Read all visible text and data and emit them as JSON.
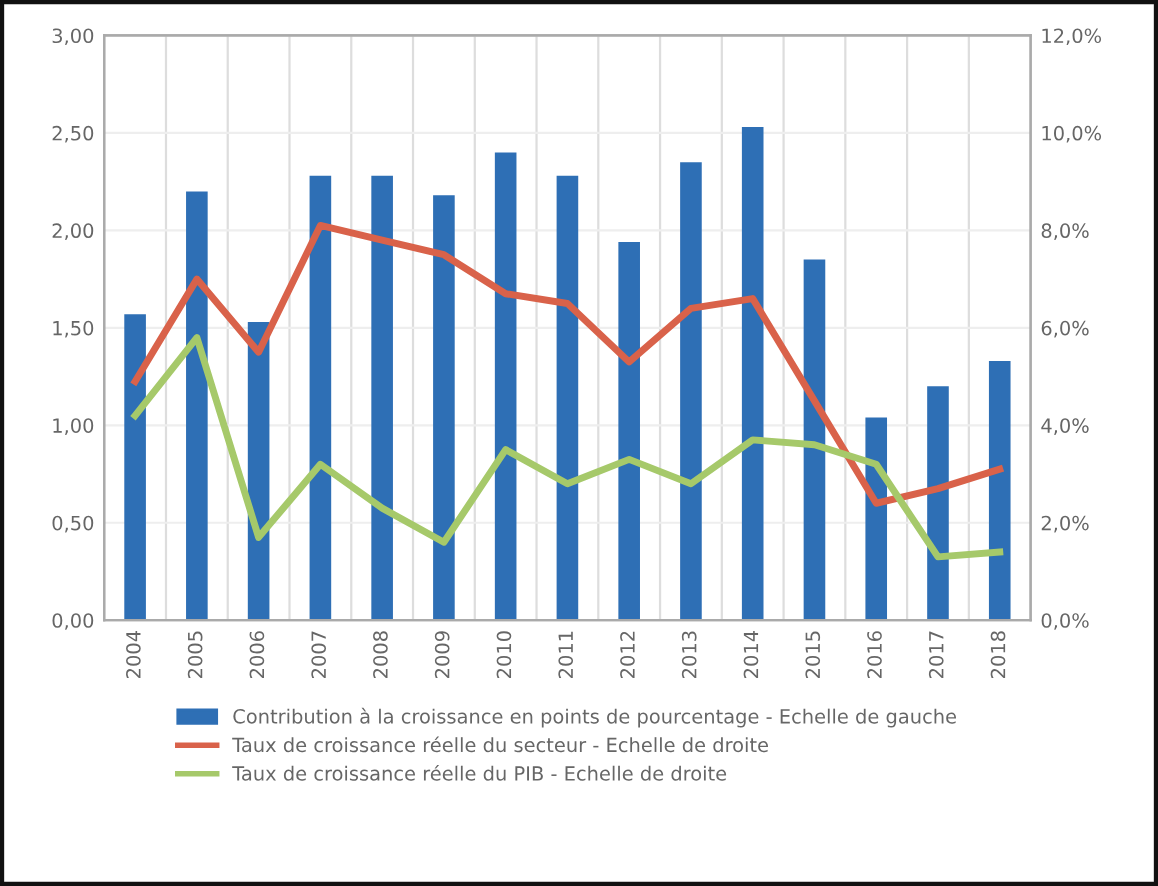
{
  "chart_data": {
    "type": "bar",
    "categories": [
      "2004",
      "2005",
      "2006",
      "2007",
      "2008",
      "2009",
      "2010",
      "2011",
      "2012",
      "2013",
      "2014",
      "2015",
      "2016",
      "2017",
      "2018"
    ],
    "series": [
      {
        "name": "Contribution à la croissance en points de pourcentage - Echelle de gauche",
        "color": "#2e6fb5",
        "values": [
          1.57,
          2.2,
          1.53,
          2.28,
          2.28,
          2.18,
          2.4,
          2.28,
          1.94,
          2.35,
          2.53,
          1.85,
          1.04,
          1.2,
          1.33
        ]
      },
      {
        "name": "Taux de croissance réelle du secteur - Echelle de droite",
        "type": "line",
        "axis": "y2",
        "color": "#d9624a",
        "values": [
          4.9,
          7.0,
          5.5,
          8.1,
          7.8,
          7.5,
          6.7,
          6.5,
          5.3,
          6.4,
          6.6,
          4.5,
          2.4,
          2.7,
          3.1
        ]
      },
      {
        "name": "Taux de croissance réelle du PIB - Echelle de droite",
        "type": "line",
        "axis": "y2",
        "color": "#a6c96a",
        "values": [
          4.2,
          5.8,
          1.7,
          3.2,
          2.3,
          1.6,
          3.5,
          2.8,
          3.3,
          2.8,
          3.7,
          3.6,
          3.2,
          1.3,
          1.4
        ]
      }
    ],
    "ylim": [
      0,
      3
    ],
    "yticks": [
      {
        "value": 0,
        "label": "0,00"
      },
      {
        "value": 0.5,
        "label": "0,50"
      },
      {
        "value": 1,
        "label": "1,00"
      },
      {
        "value": 1.5,
        "label": "1,50"
      },
      {
        "value": 2,
        "label": "2,00"
      },
      {
        "value": 2.5,
        "label": "2,50"
      },
      {
        "value": 3,
        "label": "3,00"
      }
    ],
    "y2lim": [
      0,
      12
    ],
    "y2ticks": [
      {
        "value": 0,
        "label": "0,0%"
      },
      {
        "value": 2,
        "label": "2,0%"
      },
      {
        "value": 4,
        "label": "4,0%"
      },
      {
        "value": 6,
        "label": "6,0%"
      },
      {
        "value": 8,
        "label": "8,0%"
      },
      {
        "value": 10,
        "label": "10,0%"
      },
      {
        "value": 12,
        "label": "12,0%"
      }
    ],
    "grid": true,
    "legend": "bottom"
  }
}
